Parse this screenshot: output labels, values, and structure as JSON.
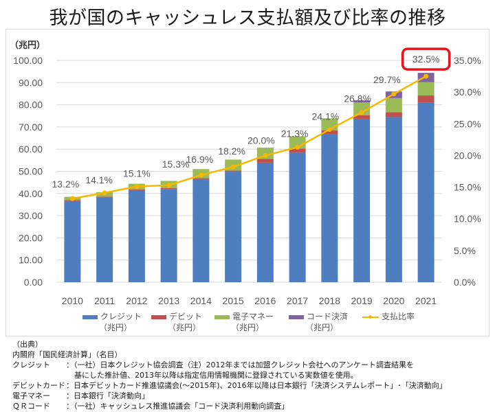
{
  "title": "我が国のキャッシュレス支払額及び比率の推移",
  "chart_data": {
    "type": "bar",
    "stacked": true,
    "title": "我が国のキャッシュレス支払額及び比率の推移",
    "ylabel": "（兆円）",
    "ylim": [
      0,
      100
    ],
    "y_ticks": [
      "0.00",
      "10.00",
      "20.00",
      "30.00",
      "40.00",
      "50.00",
      "60.00",
      "70.00",
      "80.00",
      "90.00",
      "100.00"
    ],
    "y2lim": [
      0,
      35
    ],
    "y2_ticks": [
      "0.0%",
      "5.0%",
      "10.0%",
      "15.0%",
      "20.0%",
      "25.0%",
      "30.0%",
      "35.0%"
    ],
    "categories": [
      "2010",
      "2011",
      "2012",
      "2013",
      "2014",
      "2015",
      "2016",
      "2017",
      "2018",
      "2019",
      "2020",
      "2021"
    ],
    "series": [
      {
        "name": "クレジット（兆円）",
        "type": "bar",
        "color": "#4e7ebf",
        "values": [
          36.6,
          38.2,
          41.5,
          42.0,
          46.5,
          49.8,
          53.9,
          58.4,
          66.7,
          73.7,
          74.5,
          81.0
        ]
      },
      {
        "name": "デビット（兆円）",
        "type": "bar",
        "color": "#c0504d",
        "values": [
          0.4,
          0.4,
          0.4,
          0.4,
          0.4,
          0.5,
          1.7,
          1.9,
          1.7,
          1.6,
          2.2,
          3.2
        ]
      },
      {
        "name": "電子マネー（兆円）",
        "type": "bar",
        "color": "#9bbb59",
        "values": [
          1.5,
          2.0,
          2.5,
          3.3,
          4.1,
          5.0,
          5.1,
          5.5,
          5.5,
          5.8,
          6.3,
          6.0
        ]
      },
      {
        "name": "コード決済（兆円）",
        "type": "bar",
        "color": "#8064a2",
        "values": [
          0,
          0,
          0,
          0,
          0,
          0,
          0,
          0,
          0,
          0.9,
          3.0,
          4.2
        ]
      },
      {
        "name": "支払比率",
        "type": "line",
        "axis": "right",
        "color": "#f5b800",
        "values": [
          13.2,
          14.1,
          15.1,
          15.3,
          16.9,
          18.2,
          20.0,
          21.3,
          24.1,
          26.8,
          29.7,
          32.5
        ],
        "labels": [
          "13.2%",
          "14.1%",
          "15.1%",
          "15.3%",
          "16.9%",
          "18.2%",
          "20.0%",
          "21.3%",
          "24.1%",
          "26.8%",
          "29.7%",
          "32.5%"
        ]
      }
    ],
    "highlight": {
      "label": "32.5%",
      "color": "#e8141b"
    },
    "grid": true,
    "legend_position": "bottom"
  },
  "legend": [
    {
      "label": "クレジット",
      "sub": "（兆円）",
      "color": "#4e7ebf",
      "kind": "bar"
    },
    {
      "label": "デビット",
      "sub": "（兆円）",
      "color": "#c0504d",
      "kind": "bar"
    },
    {
      "label": "電子マネー",
      "sub": "（兆円）",
      "color": "#9bbb59",
      "kind": "bar"
    },
    {
      "label": "コード決済",
      "sub": "（兆円）",
      "color": "#8064a2",
      "kind": "bar"
    },
    {
      "label": "支払比率",
      "sub": "",
      "color": "#f5b800",
      "kind": "line"
    }
  ],
  "source": {
    "heading": "（出典）",
    "line1": "内閣府「国民経済計算」（名目）",
    "credit_label": "クレジット",
    "credit_text": "：（一社）日本クレジット協会調査（注）2012年までは加盟クレジット会社へのアンケート調査結果を",
    "credit_text2": "基にした推計値、2013年以降は指定信用情報機関に登録されている実数値を使用。",
    "debit_label": "デビットカード",
    "debit_text": "：日本デビットカード推進協議会(～2015年)、2016年以降は日本銀行「決済システムレポート」･「決済動向」",
    "emoney_label": "電子マネー",
    "emoney_text": "：日本銀行「決済動向」",
    "qr_label": "ＱＲコード",
    "qr_text": "：（一社）キャッシュレス推進協議会「コード決済利用動向調査」"
  }
}
